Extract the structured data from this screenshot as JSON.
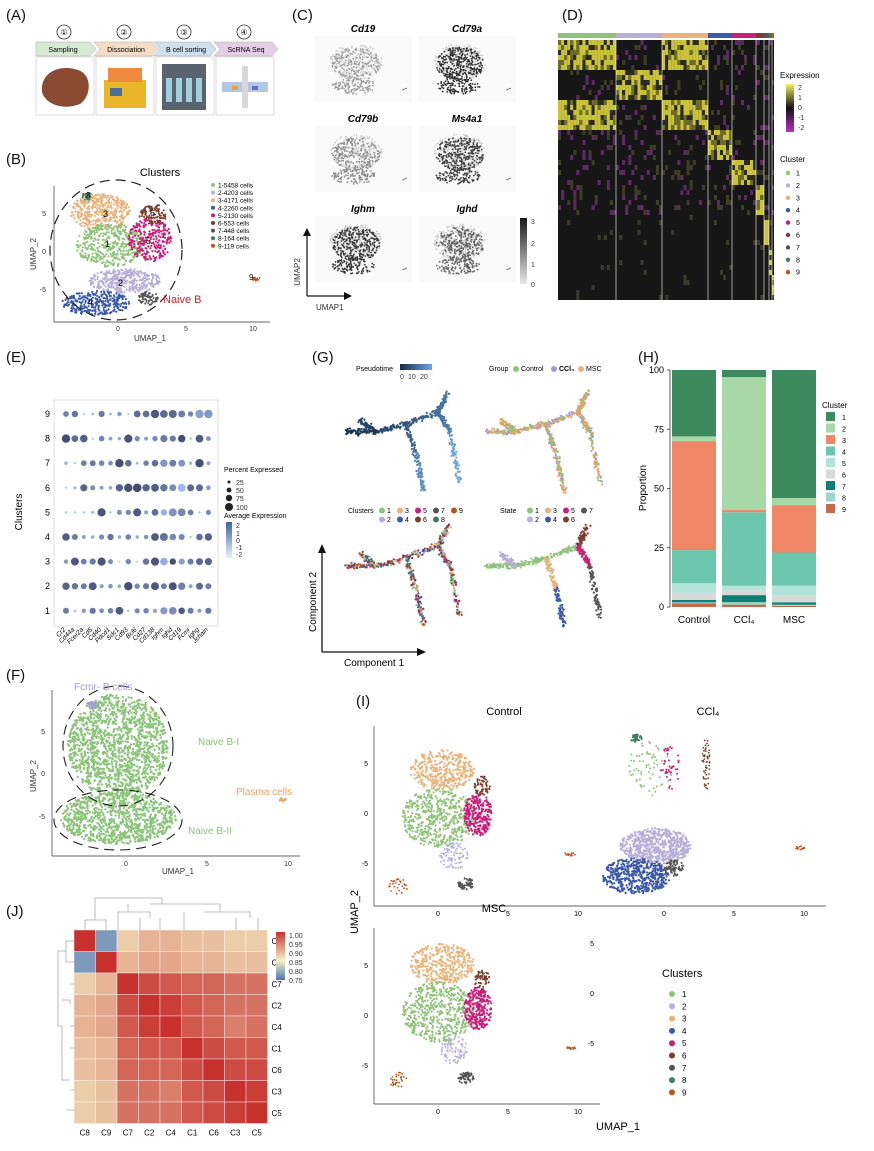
{
  "panels": {
    "A": "(A)",
    "B": "(B)",
    "C": "(C)",
    "D": "(D)",
    "E": "(E)",
    "F": "(F)",
    "G": "(G)",
    "H": "(H)",
    "I": "(I)",
    "J": "(J)"
  },
  "panelA": {
    "steps": [
      {
        "num": "①",
        "label": "Sampling"
      },
      {
        "num": "②",
        "label": "Dissociation"
      },
      {
        "num": "③",
        "label": "B cell sorting"
      },
      {
        "num": "④",
        "label": "ScRNA Seq"
      }
    ]
  },
  "panelB": {
    "title": "Clusters",
    "xlabel": "UMAP_1",
    "ylabel": "UMAP_2",
    "xticks": [
      "0",
      "5",
      "10"
    ],
    "yticks": [
      "5",
      "0",
      "-5"
    ],
    "legend": [
      "1-5458 cells",
      "2-4203 cells",
      "3-4171 cells",
      "4-2260 cells",
      "5-2130 cells",
      "6-553 cells",
      "7-448 cells",
      "8-164 cells",
      "9-119 cells"
    ],
    "cluster_labels": [
      "1",
      "2",
      "3",
      "4",
      "5",
      "6",
      "7",
      "8",
      "9"
    ],
    "annotation": "Naive B"
  },
  "panelC": {
    "genes": [
      "Cd19",
      "Cd79a",
      "Cd79b",
      "Ms4a1",
      "Ighm",
      "Ighd"
    ],
    "xlabel": "UMAP1",
    "ylabel": "UMAP2",
    "scale": [
      "3",
      "2",
      "1",
      "0"
    ]
  },
  "panelD": {
    "legend_title": "Expression",
    "expr_ticks": [
      "2",
      "1",
      "0",
      "-1",
      "-2"
    ],
    "cluster_title": "Cluster",
    "clusters": [
      "1",
      "2",
      "3",
      "4",
      "5",
      "6",
      "7",
      "8",
      "9"
    ]
  },
  "panelE": {
    "ylabel": "Clusters",
    "rows": [
      "9",
      "8",
      "7",
      "6",
      "5",
      "4",
      "3",
      "2",
      "1"
    ],
    "genes": [
      "Cr2",
      "Cd44a",
      "Fcer2a",
      "Cd5",
      "Cd40",
      "Pdcd1",
      "Sdc1",
      "Cd93",
      "Bcl6",
      "Cd27",
      "Cd138",
      "Ighm",
      "Ighd",
      "Cd19",
      "Fcmr",
      "Ighg",
      "Jchain"
    ],
    "pct_title": "Percent Expressed",
    "pct_values": [
      "25",
      "50",
      "75",
      "100"
    ],
    "avg_title": "Average Expression",
    "avg_ticks": [
      "2",
      "1",
      "0",
      "-1",
      "-2"
    ]
  },
  "panelF": {
    "xlabel": "UMAP_1",
    "ylabel": "UMAP_2",
    "xticks": [
      "0",
      "5",
      "10"
    ],
    "yticks": [
      "5",
      "0",
      "-5"
    ],
    "labels": {
      "fcmr": "Fcmr- B cells",
      "naive1": "Naive B-I",
      "naive2": "Naive B-II",
      "plasma": "Plasma cells"
    }
  },
  "panelG": {
    "pseudotime_title": "Pseudotime",
    "pseudotime_ticks": [
      "0",
      "10",
      "20"
    ],
    "group_title": "Group",
    "groups": [
      "Control",
      "CCl₄",
      "MSC"
    ],
    "clusters_title": "Clusters",
    "clusters": [
      "1",
      "2",
      "3",
      "4",
      "5",
      "6",
      "7",
      "8",
      "9"
    ],
    "state_title": "State",
    "states": [
      "1",
      "2",
      "3",
      "4",
      "5",
      "6",
      "7"
    ],
    "xlabel": "Component 1",
    "ylabel": "Component 2"
  },
  "chart_data": {
    "type": "bar",
    "title": "",
    "xlabel": "",
    "ylabel": "Proportion",
    "ylim": [
      0,
      100
    ],
    "yticks": [
      "100",
      "75",
      "50",
      "25",
      "0"
    ],
    "legend_title": "Cluster",
    "categories": [
      "Control",
      "CCl₄",
      "MSC"
    ],
    "series": [
      {
        "name": "1",
        "color": "#3e8a5f",
        "values": [
          28,
          3,
          54
        ]
      },
      {
        "name": "2",
        "color": "#a8d8a8",
        "values": [
          2,
          56,
          3
        ]
      },
      {
        "name": "3",
        "color": "#ef8766",
        "values": [
          46,
          1,
          20
        ]
      },
      {
        "name": "4",
        "color": "#6cc6ad",
        "values": [
          14,
          31,
          14
        ]
      },
      {
        "name": "5",
        "color": "#b2e4d8",
        "values": [
          4,
          2,
          4
        ]
      },
      {
        "name": "6",
        "color": "#d9d9d9",
        "values": [
          3,
          2,
          3
        ]
      },
      {
        "name": "7",
        "color": "#0e7f77",
        "values": [
          1,
          3,
          1
        ]
      },
      {
        "name": "8",
        "color": "#9fd5cf",
        "values": [
          0.5,
          1,
          0.5
        ]
      },
      {
        "name": "9",
        "color": "#c46a4a",
        "values": [
          1.5,
          1,
          0.5
        ]
      }
    ]
  },
  "panelI": {
    "titles": {
      "control": "Control",
      "ccl4": "CCl₄",
      "msc": "MSC"
    },
    "xlabel": "UMAP_1",
    "ylabel": "UMAP_2",
    "xticks": [
      "0",
      "5",
      "10"
    ],
    "yticks": [
      "5",
      "0",
      "-5"
    ],
    "legend_title": "Clusters",
    "clusters": [
      "1",
      "2",
      "3",
      "4",
      "5",
      "6",
      "7",
      "8",
      "9"
    ]
  },
  "panelJ": {
    "labels": [
      "C8",
      "C9",
      "C7",
      "C2",
      "C4",
      "C1",
      "C6",
      "C3",
      "C5"
    ],
    "scale": [
      "1.00",
      "0.95",
      "0.90",
      "0.85",
      "0.80",
      "0.75"
    ],
    "matrix": [
      [
        1.0,
        0.78,
        0.88,
        0.9,
        0.9,
        0.89,
        0.89,
        0.88,
        0.88
      ],
      [
        0.78,
        1.0,
        0.9,
        0.91,
        0.91,
        0.9,
        0.9,
        0.89,
        0.89
      ],
      [
        0.88,
        0.9,
        1.0,
        0.98,
        0.97,
        0.96,
        0.96,
        0.95,
        0.95
      ],
      [
        0.9,
        0.91,
        0.98,
        1.0,
        0.99,
        0.97,
        0.96,
        0.95,
        0.95
      ],
      [
        0.9,
        0.91,
        0.97,
        0.99,
        1.0,
        0.97,
        0.96,
        0.94,
        0.95
      ],
      [
        0.89,
        0.9,
        0.96,
        0.97,
        0.97,
        1.0,
        0.98,
        0.97,
        0.97
      ],
      [
        0.89,
        0.9,
        0.96,
        0.96,
        0.96,
        0.98,
        1.0,
        0.98,
        0.98
      ],
      [
        0.88,
        0.89,
        0.95,
        0.95,
        0.94,
        0.97,
        0.98,
        1.0,
        0.99
      ],
      [
        0.88,
        0.89,
        0.95,
        0.95,
        0.95,
        0.97,
        0.98,
        0.99,
        1.0
      ]
    ]
  },
  "colors": {
    "c1": "#8fc37a",
    "c2": "#b7afd8",
    "c3": "#e8b27a",
    "c4": "#3b59a8",
    "c5": "#c91f7a",
    "c6": "#7b3d2b",
    "c7": "#555555",
    "c8": "#3f7c62",
    "c9": "#b5561d",
    "annot_red": "#c0272d",
    "annot_purple": "#a899d4",
    "annot_orange": "#e8a465",
    "annot_green": "#8bc47a"
  }
}
